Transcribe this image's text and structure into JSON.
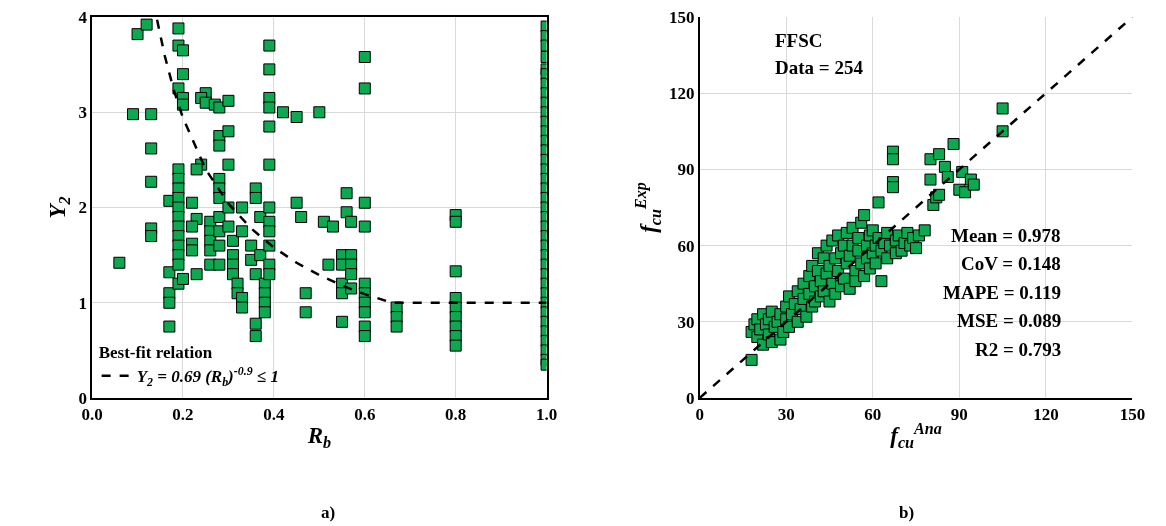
{
  "chart_data": [
    {
      "type": "scatter",
      "xlabel": "R$_{b}$",
      "ylabel": "Y$_{2}$",
      "legend_title": "Best-fit relation",
      "legend": "bottom left",
      "grid": true,
      "xlim": [
        0,
        1
      ],
      "xticks": [
        {
          "value": 0,
          "label": "0.0"
        },
        0.2,
        0.4,
        0.6,
        0.8,
        {
          "value": 1,
          "label": "1.0"
        }
      ],
      "ylim": [
        0,
        4
      ],
      "yticks": [
        0,
        1,
        2,
        3,
        4
      ],
      "annotations": [
        "a)"
      ],
      "series": [
        {
          "marker": "square",
          "color": "#0da84f",
          "x": [
            0.1,
            0.12,
            0.19,
            0.19,
            0.2,
            0.2,
            0.19,
            0.2,
            0.2,
            0.09,
            0.13,
            0.13,
            0.13,
            0.13,
            0.13,
            0.06,
            0.17,
            0.17,
            0.17,
            0.17,
            0.17,
            0.19,
            0.19,
            0.19,
            0.19,
            0.19,
            0.19,
            0.19,
            0.19,
            0.19,
            0.19,
            0.19,
            0.19,
            0.2,
            0.22,
            0.23,
            0.22,
            0.22,
            0.22,
            0.24,
            0.23,
            0.23,
            0.25,
            0.24,
            0.25,
            0.26,
            0.26,
            0.26,
            0.26,
            0.26,
            0.27,
            0.28,
            0.28,
            0.28,
            0.28,
            0.28,
            0.28,
            0.28,
            0.28,
            0.28,
            0.28,
            0.3,
            0.3,
            0.3,
            0.3,
            0.3,
            0.31,
            0.31,
            0.31,
            0.31,
            0.32,
            0.32,
            0.33,
            0.33,
            0.33,
            0.33,
            0.35,
            0.35,
            0.36,
            0.36,
            0.36,
            0.36,
            0.36,
            0.37,
            0.37,
            0.38,
            0.38,
            0.38,
            0.38,
            0.39,
            0.39,
            0.39,
            0.39,
            0.39,
            0.39,
            0.39,
            0.39,
            0.39,
            0.39,
            0.39,
            0.39,
            0.42,
            0.45,
            0.45,
            0.46,
            0.47,
            0.47,
            0.5,
            0.51,
            0.52,
            0.53,
            0.55,
            0.55,
            0.55,
            0.55,
            0.55,
            0.56,
            0.56,
            0.57,
            0.57,
            0.57,
            0.57,
            0.57,
            0.6,
            0.6,
            0.6,
            0.6,
            0.6,
            0.6,
            0.6,
            0.6,
            0.6,
            0.6,
            0.67,
            0.67,
            0.67,
            0.8,
            0.8,
            0.8,
            0.8,
            0.8,
            0.8,
            0.8,
            0.8,
            0.8,
            1,
            1,
            1,
            1,
            1,
            1,
            1,
            1,
            1,
            1,
            1,
            1,
            1,
            1,
            1,
            1,
            1,
            1,
            1,
            1,
            1,
            1,
            1,
            1,
            1,
            1,
            1,
            1,
            1,
            1,
            1,
            1,
            1,
            1,
            1,
            1,
            1
          ],
          "values": [
            3.82,
            3.92,
            3.88,
            3.7,
            3.65,
            3.4,
            3.25,
            3.15,
            3.08,
            2.98,
            2.98,
            2.62,
            2.27,
            1.78,
            1.7,
            1.42,
            2.07,
            1.32,
            1.1,
            1.0,
            0.75,
            2.4,
            2.3,
            2.2,
            2.1,
            2.0,
            1.9,
            1.8,
            1.7,
            1.6,
            1.5,
            1.4,
            1.2,
            1.25,
            2.05,
            1.88,
            1.8,
            1.62,
            1.55,
            2.45,
            2.4,
            1.3,
            3.2,
            3.15,
            3.1,
            1.85,
            1.75,
            1.65,
            1.55,
            1.4,
            3.08,
            3.05,
            2.75,
            2.65,
            2.3,
            2.2,
            2.1,
            1.9,
            1.75,
            1.6,
            1.4,
            3.12,
            2.8,
            2.45,
            2.0,
            1.8,
            1.65,
            1.5,
            1.4,
            1.3,
            1.2,
            1.1,
            1.05,
            0.95,
            1.75,
            2.0,
            1.6,
            1.45,
            0.78,
            0.65,
            1.3,
            2.2,
            2.1,
            1.9,
            1.5,
            1.2,
            1.1,
            1.0,
            0.9,
            3.7,
            3.45,
            3.15,
            3.05,
            2.85,
            2.45,
            2.0,
            1.85,
            1.75,
            1.6,
            1.4,
            1.3,
            3.0,
            2.95,
            2.05,
            1.9,
            1.1,
            0.9,
            3.0,
            1.85,
            1.4,
            1.8,
            1.5,
            1.4,
            1.2,
            1.1,
            0.8,
            2.15,
            1.95,
            1.85,
            1.5,
            1.4,
            1.3,
            1.15,
            3.58,
            3.25,
            2.05,
            1.8,
            1.2,
            1.1,
            1.0,
            0.9,
            0.75,
            0.65,
            0.95,
            0.85,
            0.75,
            1.92,
            1.85,
            1.33,
            1.05,
            0.95,
            0.85,
            0.75,
            0.65,
            0.55,
            3.9,
            3.8,
            3.7,
            3.58,
            3.45,
            3.4,
            3.3,
            3.2,
            3.1,
            3.0,
            2.9,
            2.8,
            2.7,
            2.6,
            2.5,
            2.4,
            2.3,
            2.2,
            2.1,
            2.0,
            1.9,
            1.8,
            1.7,
            1.6,
            1.5,
            1.4,
            1.3,
            1.2,
            1.1,
            1.0,
            0.9,
            0.8,
            0.7,
            0.6,
            0.5,
            0.4,
            0.35
          ]
        },
        {
          "type": "line",
          "name": "Y$_{2}$ = 0.69 (R$_{b}$)$^{-0.9}$ ≤ 1",
          "color": "#000000",
          "line_style": "dashed",
          "marker": "none",
          "x": [
            0.143,
            0.16,
            0.18,
            0.2,
            0.25,
            0.3,
            0.35,
            0.4,
            0.45,
            0.5,
            0.55,
            0.6,
            0.66,
            0.8,
            1.0
          ],
          "values": [
            3.97,
            3.59,
            3.23,
            2.94,
            2.4,
            2.04,
            1.78,
            1.58,
            1.42,
            1.29,
            1.18,
            1.09,
            1.0,
            1.0,
            1.0
          ]
        }
      ]
    },
    {
      "type": "scatter",
      "xlabel": "f$_{cu}$$^{Ana}$",
      "ylabel": "f$_{cu}$$^{Exp}$",
      "grid": true,
      "xlim": [
        0,
        150
      ],
      "xticks": [
        0,
        30,
        60,
        90,
        120,
        150
      ],
      "ylim": [
        0,
        150
      ],
      "yticks": [
        0,
        30,
        60,
        90,
        120,
        150
      ],
      "annotations": [
        "FFSC",
        "Data = 254",
        "Mean = 0.978",
        "CoV = 0.148",
        "MAPE = 0.119",
        "MSE = 0.089",
        "R2 = 0.793",
        "b)"
      ],
      "series": [
        {
          "marker": "square",
          "color": "#0da84f",
          "x": [
            18,
            18,
            19,
            20,
            20,
            21,
            22,
            22,
            23,
            24,
            24,
            25,
            25,
            26,
            27,
            28,
            28,
            29,
            30,
            30,
            31,
            31,
            32,
            33,
            34,
            34,
            35,
            36,
            36,
            37,
            38,
            38,
            39,
            39,
            40,
            40,
            41,
            41,
            42,
            42,
            43,
            43,
            44,
            44,
            45,
            45,
            46,
            46,
            47,
            47,
            48,
            48,
            49,
            49,
            50,
            50,
            51,
            51,
            52,
            52,
            53,
            53,
            54,
            54,
            55,
            55,
            56,
            56,
            57,
            57,
            58,
            58,
            59,
            59,
            60,
            60,
            61,
            61,
            62,
            62,
            63,
            63,
            64,
            65,
            65,
            66,
            67,
            67,
            67,
            67,
            68,
            68,
            69,
            70,
            71,
            72,
            73,
            74,
            75,
            76,
            78,
            80,
            80,
            81,
            82,
            83,
            83,
            85,
            86,
            88,
            90,
            91,
            92,
            94,
            95,
            105,
            105
          ],
          "values": [
            15,
            26,
            29,
            24,
            31,
            27,
            21,
            33,
            29,
            25,
            31,
            22,
            34,
            28,
            30,
            23,
            33,
            26,
            31,
            36,
            28,
            40,
            33,
            37,
            30,
            42,
            35,
            45,
            39,
            32,
            48,
            41,
            36,
            52,
            44,
            38,
            50,
            57,
            46,
            40,
            55,
            42,
            60,
            49,
            38,
            52,
            62,
            45,
            55,
            41,
            64,
            50,
            57,
            44,
            60,
            47,
            65,
            53,
            56,
            43,
            67,
            60,
            50,
            46,
            63,
            58,
            69,
            53,
            72,
            48,
            60,
            55,
            64,
            51,
            57,
            66,
            60,
            53,
            77,
            63,
            58,
            46,
            61,
            55,
            65,
            60,
            97,
            94,
            85,
            83,
            57,
            62,
            64,
            58,
            61,
            65,
            60,
            63,
            59,
            64,
            66,
            86,
            94,
            76,
            79,
            80,
            96,
            91,
            87,
            100,
            82,
            89,
            81,
            86,
            84,
            105,
            114
          ]
        },
        {
          "type": "line",
          "color": "#000000",
          "line_style": "dashed",
          "marker": "none",
          "x": [
            0,
            150
          ],
          "values": [
            0,
            150
          ]
        }
      ]
    }
  ]
}
